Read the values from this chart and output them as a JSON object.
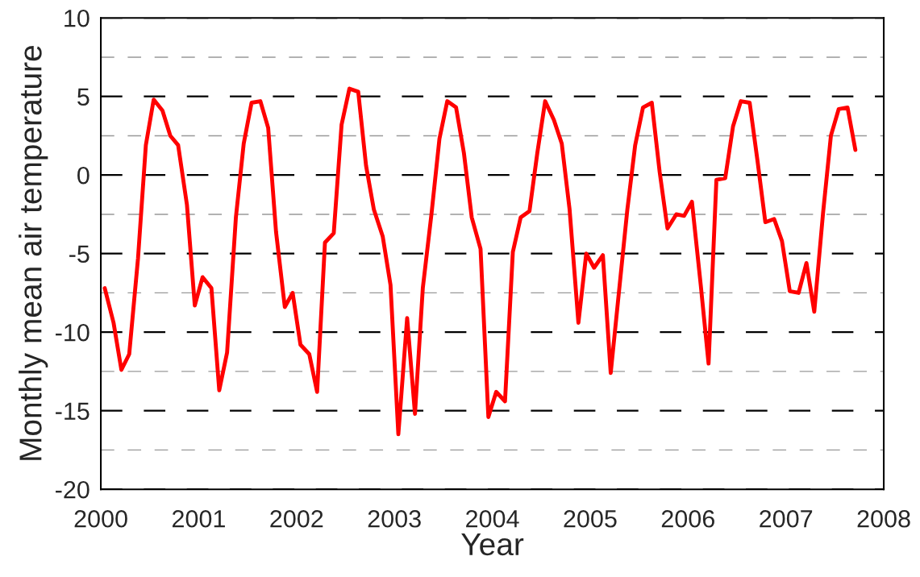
{
  "chart_data": {
    "type": "line",
    "xlabel": "Year",
    "ylabel": "Monthly mean air temperature",
    "xlim": [
      2000,
      2008
    ],
    "xticks": [
      2000,
      2001,
      2002,
      2003,
      2004,
      2005,
      2006,
      2007,
      2008
    ],
    "ylim": [
      -20,
      10
    ],
    "yticks": [
      -20,
      {
        "value": -17.5,
        "label": null
      },
      -15,
      {
        "value": -12.5,
        "label": null
      },
      -10,
      {
        "value": -7.5,
        "label": null
      },
      -5,
      {
        "value": -2.5,
        "label": null
      },
      0,
      {
        "value": 2.5,
        "label": null
      },
      5,
      {
        "value": 7.5,
        "label": null
      },
      10
    ],
    "grid": "y",
    "line_style": "solid",
    "marker": "none",
    "x": [
      2000.04,
      2000.13,
      2000.21,
      2000.29,
      2000.38,
      2000.46,
      2000.54,
      2000.63,
      2000.71,
      2000.79,
      2000.88,
      2000.96,
      2001.04,
      2001.13,
      2001.21,
      2001.29,
      2001.38,
      2001.46,
      2001.54,
      2001.63,
      2001.71,
      2001.79,
      2001.88,
      2001.96,
      2002.04,
      2002.13,
      2002.21,
      2002.29,
      2002.38,
      2002.46,
      2002.54,
      2002.63,
      2002.71,
      2002.79,
      2002.88,
      2002.96,
      2003.04,
      2003.13,
      2003.21,
      2003.29,
      2003.38,
      2003.46,
      2003.54,
      2003.63,
      2003.71,
      2003.79,
      2003.88,
      2003.96,
      2004.04,
      2004.13,
      2004.21,
      2004.29,
      2004.38,
      2004.46,
      2004.54,
      2004.63,
      2004.71,
      2004.79,
      2004.88,
      2004.96,
      2005.04,
      2005.13,
      2005.21,
      2005.29,
      2005.38,
      2005.46,
      2005.54,
      2005.63,
      2005.71,
      2005.79,
      2005.88,
      2005.96,
      2006.04,
      2006.13,
      2006.21,
      2006.29,
      2006.38,
      2006.46,
      2006.54,
      2006.63,
      2006.71,
      2006.79,
      2006.88,
      2006.96,
      2007.04,
      2007.13,
      2007.21,
      2007.29,
      2007.38,
      2007.46,
      2007.54,
      2007.63,
      2007.71
    ],
    "series": [
      {
        "color": "#ff0000",
        "values": [
          -7.2,
          -9.4,
          -12.4,
          -11.4,
          -5.3,
          1.9,
          4.8,
          4.1,
          2.5,
          1.9,
          -1.9,
          -8.3,
          -6.5,
          -7.2,
          -13.7,
          -11.3,
          -2.7,
          2.0,
          4.6,
          4.7,
          3.0,
          -3.6,
          -8.4,
          -7.5,
          -10.8,
          -11.4,
          -13.8,
          -4.3,
          -3.7,
          3.2,
          5.5,
          5.3,
          0.6,
          -2.2,
          -3.9,
          -7.0,
          -16.5,
          -9.1,
          -15.2,
          -7.2,
          -2.4,
          2.3,
          4.7,
          4.3,
          1.4,
          -2.7,
          -4.7,
          -15.4,
          -13.8,
          -14.4,
          -4.9,
          -2.7,
          -2.3,
          1.4,
          4.7,
          3.5,
          2.0,
          -2.2,
          -9.4,
          -5.0,
          -5.9,
          -5.1,
          -12.6,
          -7.7,
          -2.2,
          1.9,
          4.3,
          4.6,
          0.2,
          -3.4,
          -2.5,
          -2.6,
          -1.7,
          -7.0,
          -12.0,
          -0.3,
          -0.2,
          3.1,
          4.7,
          4.6,
          0.9,
          -3.0,
          -2.8,
          -4.2,
          -7.4,
          -7.5,
          -5.6,
          -8.7,
          -2.4,
          2.5,
          4.2,
          4.3,
          1.6
        ]
      }
    ]
  }
}
